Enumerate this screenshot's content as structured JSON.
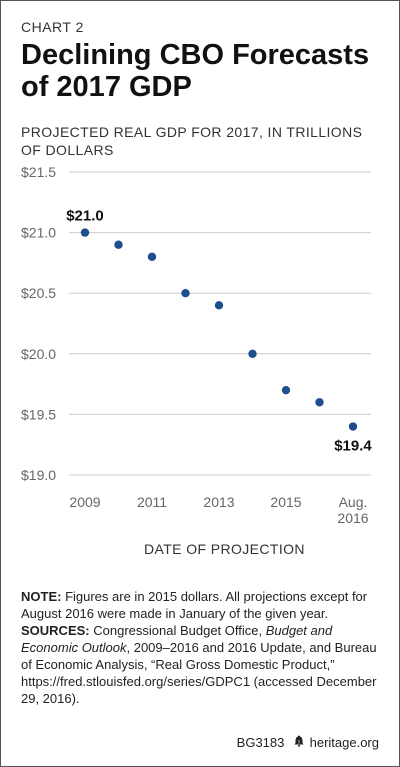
{
  "header": {
    "chart_number": "CHART 2",
    "title": "Declining CBO Forecasts of 2017 GDP"
  },
  "chart_data": {
    "type": "scatter",
    "title": "Declining CBO Forecasts of 2017 GDP",
    "subtitle": "PROJECTED REAL GDP FOR 2017, IN TRILLIONS OF DOLLARS",
    "xlabel": "DATE OF PROJECTION",
    "ylabel": "",
    "ylim": [
      19.0,
      21.5
    ],
    "yticks": [
      "$21.5",
      "$21.0",
      "$20.5",
      "$20.0",
      "$19.5",
      "$19.0"
    ],
    "ytick_values": [
      21.5,
      21.0,
      20.5,
      20.0,
      19.5,
      19.0
    ],
    "xticks": [
      "2009",
      "2011",
      "2013",
      "2015",
      "Aug. 2016"
    ],
    "x": [
      "2009",
      "2010",
      "2011",
      "2012",
      "2013",
      "2014",
      "2015",
      "2016",
      "Aug. 2016"
    ],
    "values": [
      21.0,
      20.9,
      20.8,
      20.5,
      20.4,
      20.0,
      19.7,
      19.6,
      19.4
    ],
    "annotations": [
      {
        "point_index": 0,
        "text": "$21.0",
        "position": "above"
      },
      {
        "point_index": 8,
        "text": "$19.4",
        "position": "below"
      }
    ],
    "grid": true,
    "point_color": "#1f4e8c",
    "grid_color": "#cccccc",
    "text_color": "#666666"
  },
  "notes": {
    "note_label": "NOTE:",
    "note_text": " Figures are in 2015 dollars. All projections except for August 2016 were made in January of the given year.",
    "sources_label": "SOURCES:",
    "sources_text_1": " Congressional Budget Office, ",
    "sources_title": "Budget and Economic Outlook",
    "sources_text_2": ", 2009–2016 and 2016 Update, and Bureau of Economic Analysis, “Real Gross Domestic Product,” https://fred.stlouisfed.org/series/GDPC1 (accessed December 29, 2016)."
  },
  "footer": {
    "code": "BG3183",
    "bell_icon": "liberty-bell-icon",
    "site": "heritage.org"
  }
}
